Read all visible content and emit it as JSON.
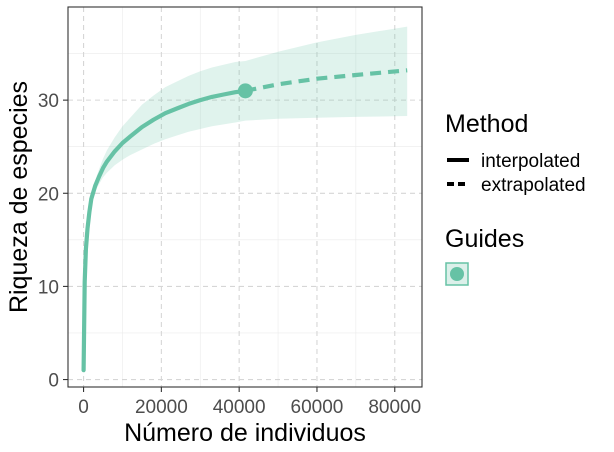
{
  "chart_data": {
    "type": "line",
    "xlabel": "Número de individuos",
    "ylabel": "Riqueza de especies",
    "xlim": [
      -4000,
      87000
    ],
    "ylim": [
      -0.8,
      40
    ],
    "x_ticks": [
      0,
      20000,
      40000,
      60000,
      80000
    ],
    "x_tick_labels": [
      "0",
      "20000",
      "40000",
      "60000",
      "80000"
    ],
    "y_ticks": [
      0,
      10,
      20,
      30
    ],
    "y_tick_labels": [
      "0",
      "10",
      "20",
      "30"
    ],
    "grid": true,
    "legend_placement": "right",
    "color": "#66c2a5",
    "ribbon_color": "#66c2a5",
    "reference_point": {
      "x": 41600,
      "y": 31
    },
    "series": [
      {
        "method": "interpolated",
        "line_style": "solid",
        "x": [
          1,
          300,
          600,
          1000,
          1500,
          2000,
          3000,
          4000,
          5000,
          6000,
          8000,
          10000,
          12000,
          15000,
          18000,
          21000,
          24000,
          27000,
          30000,
          33000,
          36000,
          39000,
          41600
        ],
        "y": [
          1,
          10.5,
          14,
          16.2,
          18,
          19.4,
          20.8,
          21.8,
          22.7,
          23.4,
          24.5,
          25.4,
          26.1,
          27.1,
          27.9,
          28.6,
          29.1,
          29.6,
          30,
          30.35,
          30.6,
          30.85,
          31
        ],
        "lower": [
          1,
          10.5,
          14,
          16.2,
          18,
          19,
          20.2,
          21,
          21.7,
          22.2,
          23,
          23.6,
          24.1,
          24.7,
          25.3,
          25.8,
          26.2,
          26.6,
          26.9,
          27.2,
          27.4,
          27.6,
          27.8
        ],
        "upper": [
          1,
          10.5,
          14,
          16.2,
          18,
          19.8,
          21.4,
          22.6,
          23.7,
          24.6,
          26,
          27.2,
          28.1,
          29.5,
          30.5,
          31.4,
          32,
          32.6,
          33.1,
          33.5,
          33.8,
          34.1,
          34.2
        ]
      },
      {
        "method": "extrapolated",
        "line_style": "dashed",
        "x": [
          41600,
          50000,
          60000,
          70000,
          83200
        ],
        "y": [
          31,
          31.7,
          32.3,
          32.7,
          33.2
        ],
        "lower": [
          27.8,
          28,
          28.1,
          28.2,
          28.3
        ],
        "upper": [
          34.2,
          35.2,
          36.2,
          37,
          37.9
        ]
      }
    ],
    "legend": {
      "method_title": "Method",
      "method_items": [
        "interpolated",
        "extrapolated"
      ],
      "guides_title": "Guides"
    }
  }
}
